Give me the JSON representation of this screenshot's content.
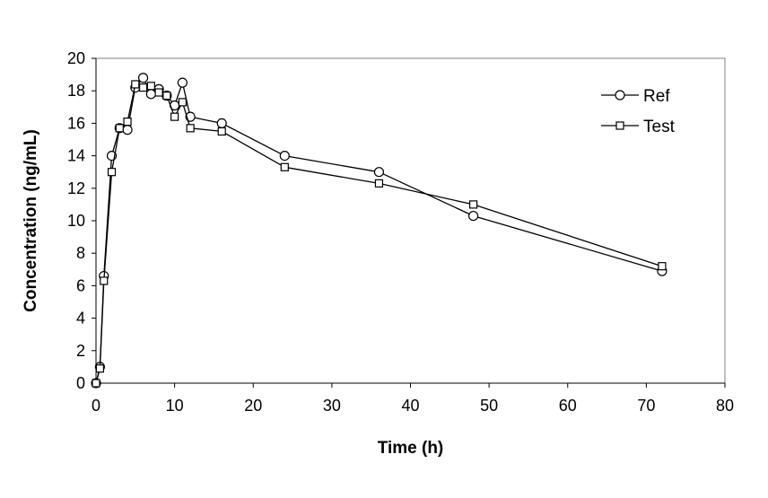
{
  "chart_data": {
    "type": "line",
    "title": "",
    "xlabel": "Time (h)",
    "ylabel": "Concentration (ng/mL)",
    "xlim": [
      0,
      80
    ],
    "ylim": [
      0,
      20
    ],
    "xticks": [
      "0",
      "10",
      "20",
      "30",
      "40",
      "50",
      "60",
      "70",
      "80"
    ],
    "yticks": [
      "0",
      "2",
      "4",
      "6",
      "8",
      "10",
      "12",
      "14",
      "16",
      "18",
      "20"
    ],
    "grid": false,
    "legend_position": "top-right",
    "series": [
      {
        "name": "Ref",
        "marker": "circle",
        "x": [
          0,
          0.5,
          1,
          2,
          3,
          4,
          5,
          6,
          7,
          8,
          9,
          10,
          11,
          12,
          16,
          24,
          36,
          48,
          72
        ],
        "y": [
          0,
          1.0,
          6.6,
          14.0,
          15.7,
          15.6,
          18.2,
          18.8,
          17.8,
          18.1,
          17.7,
          17.1,
          18.5,
          16.4,
          16.0,
          14.0,
          13.0,
          10.3,
          6.9
        ]
      },
      {
        "name": "Test",
        "marker": "square",
        "x": [
          0,
          0.5,
          1,
          2,
          3,
          4,
          5,
          6,
          7,
          8,
          9,
          10,
          11,
          12,
          16,
          24,
          36,
          48,
          72
        ],
        "y": [
          0,
          0.9,
          6.3,
          13.0,
          15.7,
          16.1,
          18.4,
          18.2,
          18.3,
          17.9,
          17.7,
          16.4,
          17.3,
          15.7,
          15.5,
          13.3,
          12.3,
          11.0,
          7.2
        ]
      }
    ]
  }
}
